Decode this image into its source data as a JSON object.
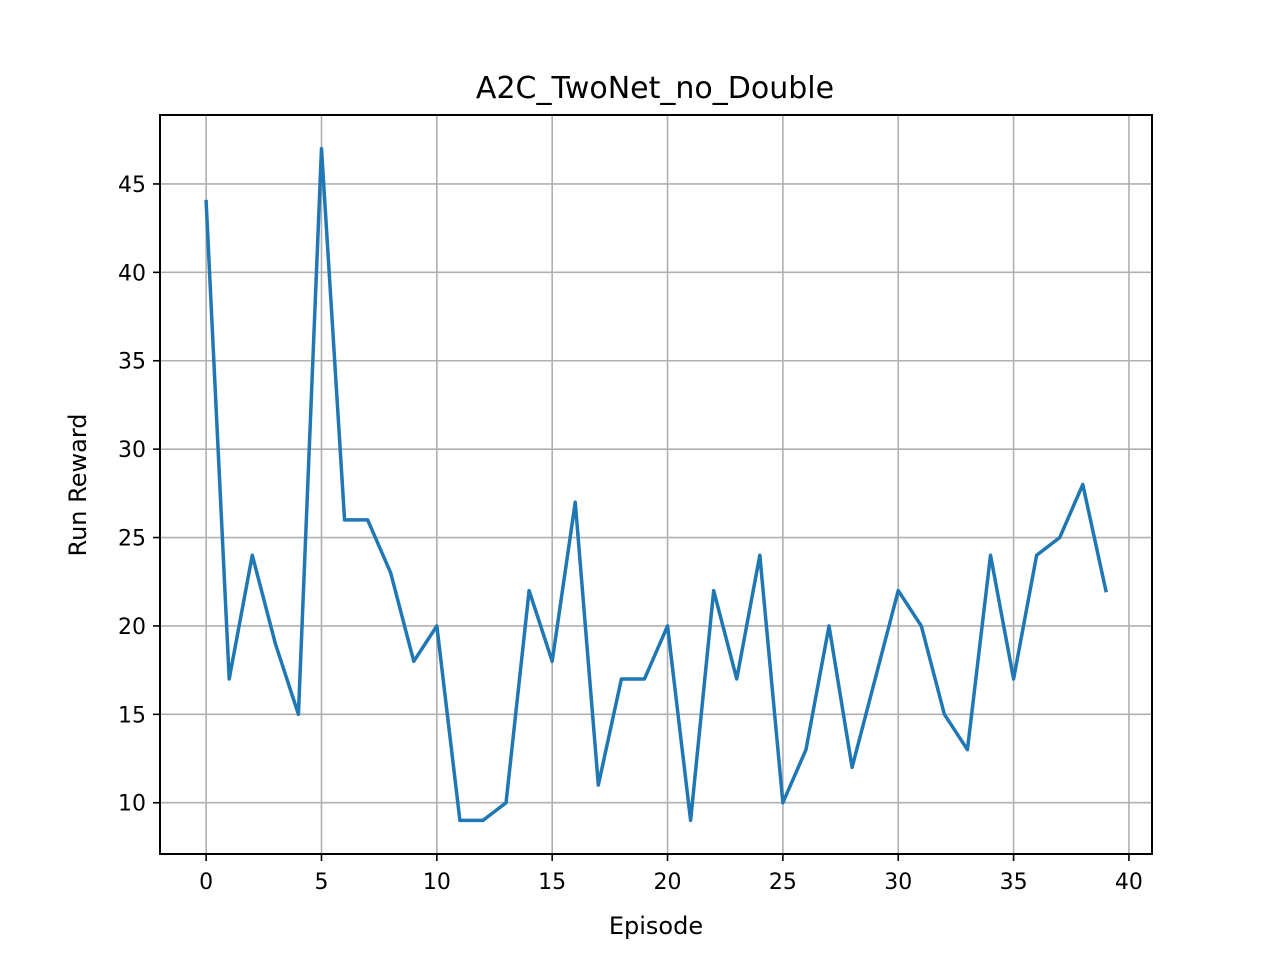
{
  "chart_data": {
    "type": "line",
    "title": "A2C_TwoNet_no_Double",
    "xlabel": "Episode",
    "ylabel": "Run Reward",
    "xlim": [
      -2,
      41
    ],
    "ylim": [
      7.1,
      48.9
    ],
    "xticks": [
      0,
      5,
      10,
      15,
      20,
      25,
      30,
      35,
      40
    ],
    "yticks": [
      10,
      15,
      20,
      25,
      30,
      35,
      40,
      45
    ],
    "grid": true,
    "series_color": "#1f77b4",
    "x": [
      0,
      1,
      2,
      3,
      4,
      5,
      6,
      7,
      8,
      9,
      10,
      11,
      12,
      13,
      14,
      15,
      16,
      17,
      18,
      19,
      20,
      21,
      22,
      23,
      24,
      25,
      26,
      27,
      28,
      29,
      30,
      31,
      32,
      33,
      34,
      35,
      36,
      37,
      38,
      39
    ],
    "series": [
      {
        "values": [
          44,
          17,
          24,
          19,
          15,
          47,
          26,
          26,
          23,
          18,
          20,
          9,
          9,
          10,
          22,
          18,
          27,
          11,
          17,
          17,
          20,
          9,
          22,
          17,
          24,
          10,
          13,
          20,
          12,
          17,
          22,
          20,
          15,
          13,
          24,
          17,
          24,
          25,
          28,
          22
        ]
      }
    ]
  }
}
